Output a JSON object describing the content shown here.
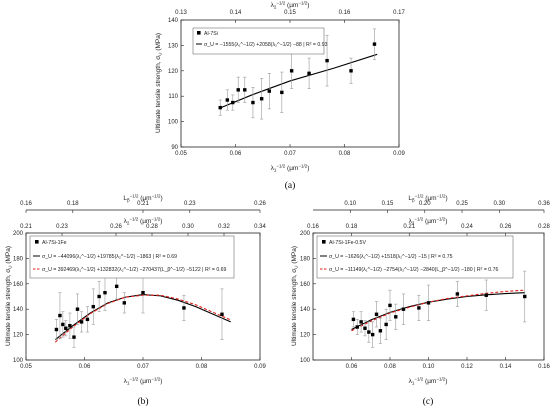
{
  "chart_data": [
    {
      "panel": "(a)",
      "type": "scatter",
      "xlabel": "λ₁^−1/2 (µm^−1/2)",
      "x2label": "λ₂^−1/2 (µm^−1/2)",
      "ylabel": "Ultimate tensile strength, σ_U (MPa)",
      "xlim": [
        0.05,
        0.09
      ],
      "x2lim": [
        0.13,
        0.17
      ],
      "ylim": [
        90,
        140
      ],
      "xticks": [
        "0.05",
        "0.06",
        "0.07",
        "0.08",
        "0.09"
      ],
      "x2ticks": [
        "0.13",
        "0.14",
        "0.15",
        "0.16",
        "0.17"
      ],
      "yticks": [
        "90",
        "100",
        "110",
        "120",
        "130",
        "140"
      ],
      "legend": {
        "series_label": "Al-7Si",
        "fit_label": "σ_U = −1555(λ₁^−1/2) +2058(λ₂^−1/2) −88  |  R² = 0.93"
      },
      "points": [
        {
          "x": 0.0572,
          "y": 105.5,
          "err": 3
        },
        {
          "x": 0.0585,
          "y": 108.5,
          "err": 4
        },
        {
          "x": 0.0595,
          "y": 107.5,
          "err": 3
        },
        {
          "x": 0.0605,
          "y": 112.5,
          "err": 5
        },
        {
          "x": 0.0617,
          "y": 112.5,
          "err": 5
        },
        {
          "x": 0.0632,
          "y": 107.5,
          "err": 6
        },
        {
          "x": 0.0648,
          "y": 109,
          "err": 8
        },
        {
          "x": 0.0662,
          "y": 112,
          "err": 7
        },
        {
          "x": 0.0685,
          "y": 111.5,
          "err": 8
        },
        {
          "x": 0.0703,
          "y": 120,
          "err": 7
        },
        {
          "x": 0.0735,
          "y": 119,
          "err": 6
        },
        {
          "x": 0.0768,
          "y": 124,
          "err": 10
        },
        {
          "x": 0.0812,
          "y": 120,
          "err": 5
        },
        {
          "x": 0.0855,
          "y": 130.5,
          "err": 6
        }
      ],
      "fits": [
        {
          "style": "solid",
          "color": "#000000",
          "x": [
            0.057,
            0.063,
            0.07,
            0.078,
            0.086
          ],
          "y": [
            105.2,
            110.5,
            116,
            121,
            126.5
          ]
        }
      ]
    },
    {
      "panel": "(b)",
      "type": "scatter",
      "xlabel": "λ₁^−1/2 (µm^−1/2)",
      "x2label": "λ₂^−1/2 (µm^−1/2)",
      "x3label": "L_β^−1/2 (µm^−1/2)",
      "ylabel": "Ultimate tensile strength, σ_U (MPa)",
      "xlim": [
        0.05,
        0.09
      ],
      "x2lim": [
        0.21,
        0.34
      ],
      "x3lim": [
        0.16,
        0.26
      ],
      "ylim": [
        100,
        200
      ],
      "xticks": [
        "0.05",
        "0.06",
        "0.07",
        "0.08",
        "0.09"
      ],
      "x2ticks": [
        "0.21",
        "0.23",
        "0.26",
        "0.28",
        "0.30",
        "0.32",
        "0.34"
      ],
      "x3ticks": [
        "0.16",
        "0.18",
        "0.21",
        "0.23",
        "0.26"
      ],
      "yticks": [
        "100",
        "120",
        "140",
        "160",
        "180",
        "200"
      ],
      "legend": {
        "series_label": "Al-7Si-1Fe",
        "fit1_label": "σ_U = −44096(λ₁^−1/2) +19785(λ₂^−1/2) −1863  |  R² = 0.69",
        "fit2_label": "σ_U = 392469(λ₁^−1/2) +132832(λ₂^−1/2) −270437(L_β^−1/2) −5122  |  R² = 0.69"
      },
      "points": [
        {
          "x": 0.0552,
          "y": 124,
          "err": 8
        },
        {
          "x": 0.0558,
          "y": 135,
          "err": 18
        },
        {
          "x": 0.0563,
          "y": 128,
          "err": 10
        },
        {
          "x": 0.0568,
          "y": 125,
          "err": 6
        },
        {
          "x": 0.0575,
          "y": 127,
          "err": 10
        },
        {
          "x": 0.0582,
          "y": 118,
          "err": 8
        },
        {
          "x": 0.0588,
          "y": 140,
          "err": 12
        },
        {
          "x": 0.0595,
          "y": 130,
          "err": 8
        },
        {
          "x": 0.0605,
          "y": 132,
          "err": 10
        },
        {
          "x": 0.0615,
          "y": 142,
          "err": 14
        },
        {
          "x": 0.0625,
          "y": 150,
          "err": 12
        },
        {
          "x": 0.0635,
          "y": 153,
          "err": 14
        },
        {
          "x": 0.0655,
          "y": 158,
          "err": 10
        },
        {
          "x": 0.0668,
          "y": 145,
          "err": 8
        },
        {
          "x": 0.07,
          "y": 153,
          "err": 16
        },
        {
          "x": 0.077,
          "y": 141,
          "err": 10
        },
        {
          "x": 0.0835,
          "y": 136,
          "err": 20
        }
      ],
      "fits": [
        {
          "style": "solid",
          "color": "#000000",
          "x": [
            0.055,
            0.058,
            0.061,
            0.064,
            0.067,
            0.07,
            0.073,
            0.076,
            0.079,
            0.082,
            0.085
          ],
          "y": [
            116,
            127,
            137,
            145,
            149.5,
            151.5,
            150.5,
            147,
            142,
            136,
            130
          ]
        },
        {
          "style": "dashed",
          "color": "#e0201b",
          "x": [
            0.055,
            0.058,
            0.061,
            0.064,
            0.067,
            0.07,
            0.073,
            0.076,
            0.079,
            0.082,
            0.085
          ],
          "y": [
            114,
            126,
            136.5,
            144.5,
            149.5,
            151,
            151,
            148,
            143.5,
            137.5,
            131.5
          ]
        }
      ]
    },
    {
      "panel": "(c)",
      "type": "scatter",
      "xlabel": "λ₁^−1/2 (µm^−1/2)",
      "x2label": "λ₂^−1/2 (µm^−1/2)",
      "x3label": "L_β^−1/2 (µm^−1/2)",
      "ylabel": "Ultimate tensile strength, σ_U (MPa)",
      "xlim": [
        0.04,
        0.16
      ],
      "x2lim": [
        0.16,
        0.28
      ],
      "x3lim": [
        0.05,
        0.36
      ],
      "ylim": [
        100,
        200
      ],
      "xticks": [
        "0.06",
        "0.08",
        "0.10",
        "0.12",
        "0.14",
        "0.16"
      ],
      "x2ticks": [
        "0.16",
        "0.18",
        "0.21",
        "0.24",
        "0.26",
        "0.28"
      ],
      "x3ticks": [
        "0.10",
        "0.15",
        "0.20",
        "0.25",
        "0.30",
        "0.36"
      ],
      "yticks": [
        "100",
        "120",
        "140",
        "160",
        "180",
        "200"
      ],
      "legend": {
        "series_label": "Al-7Si-1Fe-0.5V",
        "fit1_label": "σ_U = −1626(λ₁^−1/2) +1518(λ₂^−1/2) −15  |  R² = 0.75",
        "fit2_label": "σ_U = −11149(λ₁^−1/2) −2754(λ₂^−1/2) −2840(L_β^−1/2) −180  |  R² = 0.76"
      },
      "points": [
        {
          "x": 0.061,
          "y": 132,
          "err": 6
        },
        {
          "x": 0.063,
          "y": 126,
          "err": 6
        },
        {
          "x": 0.065,
          "y": 130,
          "err": 8
        },
        {
          "x": 0.067,
          "y": 125,
          "err": 6
        },
        {
          "x": 0.069,
          "y": 122,
          "err": 8
        },
        {
          "x": 0.071,
          "y": 120,
          "err": 10
        },
        {
          "x": 0.073,
          "y": 136,
          "err": 10
        },
        {
          "x": 0.075,
          "y": 123,
          "err": 10
        },
        {
          "x": 0.078,
          "y": 128,
          "err": 12
        },
        {
          "x": 0.08,
          "y": 143,
          "err": 12
        },
        {
          "x": 0.083,
          "y": 134,
          "err": 10
        },
        {
          "x": 0.087,
          "y": 140,
          "err": 12
        },
        {
          "x": 0.095,
          "y": 141,
          "err": 10
        },
        {
          "x": 0.1,
          "y": 145,
          "err": 14
        },
        {
          "x": 0.115,
          "y": 152,
          "err": 10
        },
        {
          "x": 0.13,
          "y": 151,
          "err": 12
        },
        {
          "x": 0.15,
          "y": 150,
          "err": 20
        }
      ],
      "fits": [
        {
          "style": "solid",
          "color": "#000000",
          "x": [
            0.06,
            0.07,
            0.08,
            0.09,
            0.1,
            0.11,
            0.12,
            0.13,
            0.14,
            0.15
          ],
          "y": [
            124,
            131.5,
            137.5,
            142,
            145.5,
            148,
            150,
            151.3,
            152.3,
            153
          ]
        },
        {
          "style": "dashed",
          "color": "#e0201b",
          "x": [
            0.06,
            0.07,
            0.08,
            0.09,
            0.1,
            0.11,
            0.12,
            0.13,
            0.14,
            0.15
          ],
          "y": [
            123,
            130.5,
            137,
            141.5,
            145.5,
            148.5,
            150.5,
            152.5,
            154,
            155
          ]
        }
      ]
    }
  ]
}
